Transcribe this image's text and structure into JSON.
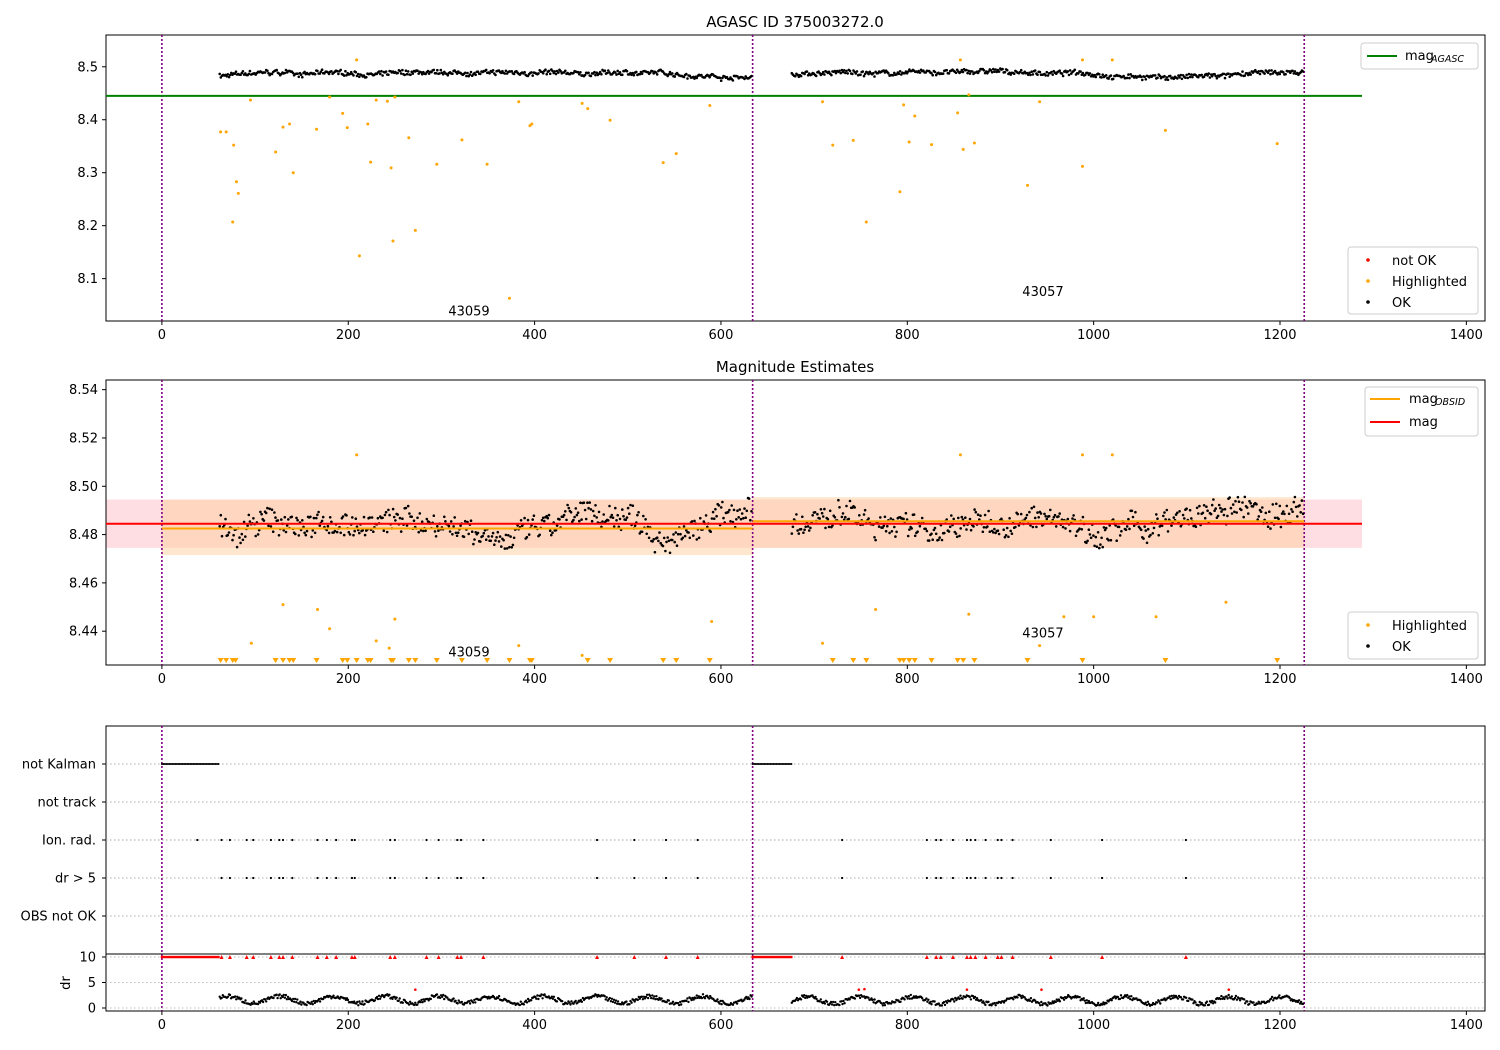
{
  "figure": {
    "title_top": "AGASC ID 375003272.0",
    "title_mid": "Magnitude Estimates"
  },
  "colors": {
    "ok": "#000000",
    "highlighted": "#ffa500",
    "not_ok": "#ff0000",
    "mag_agasc": "#008000",
    "mag_obsid": "#ffa500",
    "mag": "#ff0000",
    "divider": "#800080",
    "band_red": "#ffb6c1",
    "band_orange": "#ffd0a0"
  },
  "chart_data": [
    {
      "type": "scatter",
      "title": "AGASC ID 375003272.0",
      "xlim": [
        -60,
        1420
      ],
      "ylim": [
        8.02,
        8.56
      ],
      "xticks": [
        "0",
        "200",
        "400",
        "600",
        "800",
        "1000",
        "1200",
        "1400"
      ],
      "yticks": [
        "8.1",
        "8.2",
        "8.3",
        "8.4",
        "8.5"
      ],
      "dividers_x": [
        0,
        634,
        1226
      ],
      "obsid_labels": [
        {
          "text": "43059",
          "x": 316,
          "y": 8.04
        },
        {
          "text": "43057",
          "x": 932,
          "y": 8.077
        }
      ],
      "hlines": [
        {
          "name": "mag_AGASC",
          "y": 8.445,
          "x0": -60,
          "x1": 1288
        }
      ],
      "legend_lines": [
        {
          "label": "mag",
          "sub": "AGASC",
          "color": "#008000"
        }
      ],
      "legend_markers": [
        {
          "label": "not OK",
          "color": "#ff0000"
        },
        {
          "label": "Highlighted",
          "color": "#ffa500"
        },
        {
          "label": "OK",
          "color": "#000000"
        }
      ],
      "ok_segments": [
        {
          "x0": 62,
          "x1": 634,
          "base": 8.484,
          "amp": 0.012
        },
        {
          "x0": 676,
          "x1": 1226,
          "base": 8.486,
          "amp": 0.012
        }
      ],
      "highlighted": [
        [
          63,
          8.377
        ],
        [
          69,
          8.377
        ],
        [
          76,
          8.207
        ],
        [
          77,
          8.352
        ],
        [
          80,
          8.283
        ],
        [
          82,
          8.261
        ],
        [
          95,
          8.437
        ],
        [
          122,
          8.339
        ],
        [
          130,
          8.386
        ],
        [
          137,
          8.392
        ],
        [
          141,
          8.3
        ],
        [
          166,
          8.382
        ],
        [
          180,
          8.443
        ],
        [
          194,
          8.412
        ],
        [
          199,
          8.385
        ],
        [
          209,
          8.513
        ],
        [
          212,
          8.143
        ],
        [
          221,
          8.392
        ],
        [
          224,
          8.32
        ],
        [
          230,
          8.437
        ],
        [
          242,
          8.435
        ],
        [
          246,
          8.309
        ],
        [
          248,
          8.171
        ],
        [
          250,
          8.443
        ],
        [
          265,
          8.366
        ],
        [
          272,
          8.191
        ],
        [
          295,
          8.316
        ],
        [
          322,
          8.362
        ],
        [
          349,
          8.316
        ],
        [
          373,
          8.063
        ],
        [
          383,
          8.434
        ],
        [
          395,
          8.389
        ],
        [
          397,
          8.392
        ],
        [
          451,
          8.431
        ],
        [
          457,
          8.421
        ],
        [
          481,
          8.399
        ],
        [
          538,
          8.319
        ],
        [
          552,
          8.336
        ],
        [
          588,
          8.427
        ],
        [
          709,
          8.434
        ],
        [
          720,
          8.352
        ],
        [
          742,
          8.361
        ],
        [
          756,
          8.207
        ],
        [
          792,
          8.264
        ],
        [
          796,
          8.428
        ],
        [
          802,
          8.358
        ],
        [
          808,
          8.407
        ],
        [
          826,
          8.353
        ],
        [
          854,
          8.413
        ],
        [
          857,
          8.513
        ],
        [
          860,
          8.344
        ],
        [
          866,
          8.447
        ],
        [
          872,
          8.356
        ],
        [
          929,
          8.276
        ],
        [
          942,
          8.434
        ],
        [
          988,
          8.312
        ],
        [
          988,
          8.513
        ],
        [
          1020,
          8.513
        ],
        [
          1077,
          8.38
        ],
        [
          1197,
          8.355
        ]
      ]
    },
    {
      "type": "scatter",
      "title": "Magnitude Estimates",
      "xlim": [
        -60,
        1420
      ],
      "ylim": [
        8.426,
        8.544
      ],
      "xticks": [
        "0",
        "200",
        "400",
        "600",
        "800",
        "1000",
        "1200",
        "1400"
      ],
      "yticks": [
        "8.44",
        "8.46",
        "8.48",
        "8.50",
        "8.52",
        "8.54"
      ],
      "dividers_x": [
        0,
        634,
        1226
      ],
      "obsid_labels": [
        {
          "text": "43059",
          "x": 316,
          "y": 8.4315
        },
        {
          "text": "43057",
          "x": 932,
          "y": 8.4395
        }
      ],
      "mag": {
        "value": 8.4845,
        "band": [
          8.4745,
          8.4945
        ],
        "x0": -60,
        "x1": 1288
      },
      "mag_obsid": [
        {
          "x0": 0,
          "x1": 634,
          "value": 8.4825,
          "band": [
            8.4715,
            8.4945
          ]
        },
        {
          "x0": 634,
          "x1": 1226,
          "value": 8.4855,
          "band": [
            8.4745,
            8.4955
          ]
        }
      ],
      "legend_lines": [
        {
          "label": "mag",
          "sub": "OBSID",
          "color": "#ffa500"
        },
        {
          "label": "mag",
          "sub": "",
          "color": "#ff0000"
        }
      ],
      "legend_markers": [
        {
          "label": "Highlighted",
          "color": "#ffa500"
        },
        {
          "label": "OK",
          "color": "#000000"
        }
      ],
      "ok_segments": [
        {
          "x0": 62,
          "x1": 634,
          "base": 8.4835,
          "amp": 0.013
        },
        {
          "x0": 676,
          "x1": 1226,
          "base": 8.4855,
          "amp": 0.013
        }
      ],
      "highlighted": [
        [
          130,
          8.451
        ],
        [
          167,
          8.449
        ],
        [
          180,
          8.441
        ],
        [
          209,
          8.513
        ],
        [
          250,
          8.445
        ],
        [
          96,
          8.435
        ],
        [
          230,
          8.436
        ],
        [
          244,
          8.433
        ],
        [
          383,
          8.434
        ],
        [
          451,
          8.43
        ],
        [
          590,
          8.444
        ],
        [
          709,
          8.435
        ],
        [
          766,
          8.449
        ],
        [
          857,
          8.513
        ],
        [
          866,
          8.447
        ],
        [
          942,
          8.434
        ],
        [
          968,
          8.446
        ],
        [
          988,
          8.513
        ],
        [
          1000,
          8.446
        ],
        [
          1020,
          8.513
        ],
        [
          1067,
          8.446
        ],
        [
          1142,
          8.452
        ]
      ],
      "below_markers": [
        63,
        69,
        76,
        79,
        122,
        130,
        137,
        141,
        166,
        194,
        199,
        209,
        221,
        224,
        246,
        248,
        265,
        272,
        295,
        322,
        349,
        373,
        395,
        397,
        457,
        481,
        538,
        552,
        588,
        720,
        742,
        756,
        792,
        796,
        802,
        808,
        826,
        854,
        860,
        872,
        929,
        988,
        1077,
        1197
      ]
    },
    {
      "type": "scatter",
      "title": "",
      "xlim": [
        -60,
        1420
      ],
      "xticks": [
        "0",
        "200",
        "400",
        "600",
        "800",
        "1000",
        "1200",
        "1400"
      ],
      "ylabel": "dr",
      "dividers_x": [
        0,
        634,
        1226
      ],
      "flag_rows": [
        "not Kalman",
        "not track",
        "Ion. rad.",
        "dr > 5",
        "OBS not OK"
      ],
      "dr_yticks": [
        "0",
        "5",
        "10"
      ],
      "not_kalman_ranges": [
        [
          0,
          62
        ],
        [
          634,
          676
        ]
      ],
      "ion_rad_x": [
        38,
        64,
        73,
        91,
        98,
        117,
        126,
        130,
        140,
        167,
        177,
        187,
        204,
        207,
        245,
        250,
        284,
        297,
        317,
        321,
        345,
        467,
        507,
        541,
        575,
        730,
        821,
        831,
        836,
        849,
        864,
        868,
        873,
        884,
        897,
        901,
        913,
        954,
        1009,
        1099
      ],
      "dr_gt5_x": [
        64,
        73,
        91,
        98,
        117,
        126,
        130,
        140,
        167,
        177,
        187,
        204,
        207,
        245,
        250,
        284,
        297,
        317,
        321,
        345,
        467,
        507,
        541,
        575,
        730,
        821,
        831,
        836,
        849,
        864,
        868,
        873,
        884,
        897,
        901,
        913,
        954,
        1009,
        1099
      ],
      "dr_red_high": [
        [
          272,
          3.6
        ],
        [
          748,
          3.6
        ],
        [
          754,
          3.7
        ],
        [
          864,
          3.6
        ],
        [
          944,
          3.6
        ],
        [
          1145,
          3.6
        ]
      ],
      "dr_segments": [
        {
          "x0": 62,
          "x1": 634,
          "base": 1.6
        },
        {
          "x0": 676,
          "x1": 1226,
          "base": 1.5
        }
      ]
    }
  ]
}
